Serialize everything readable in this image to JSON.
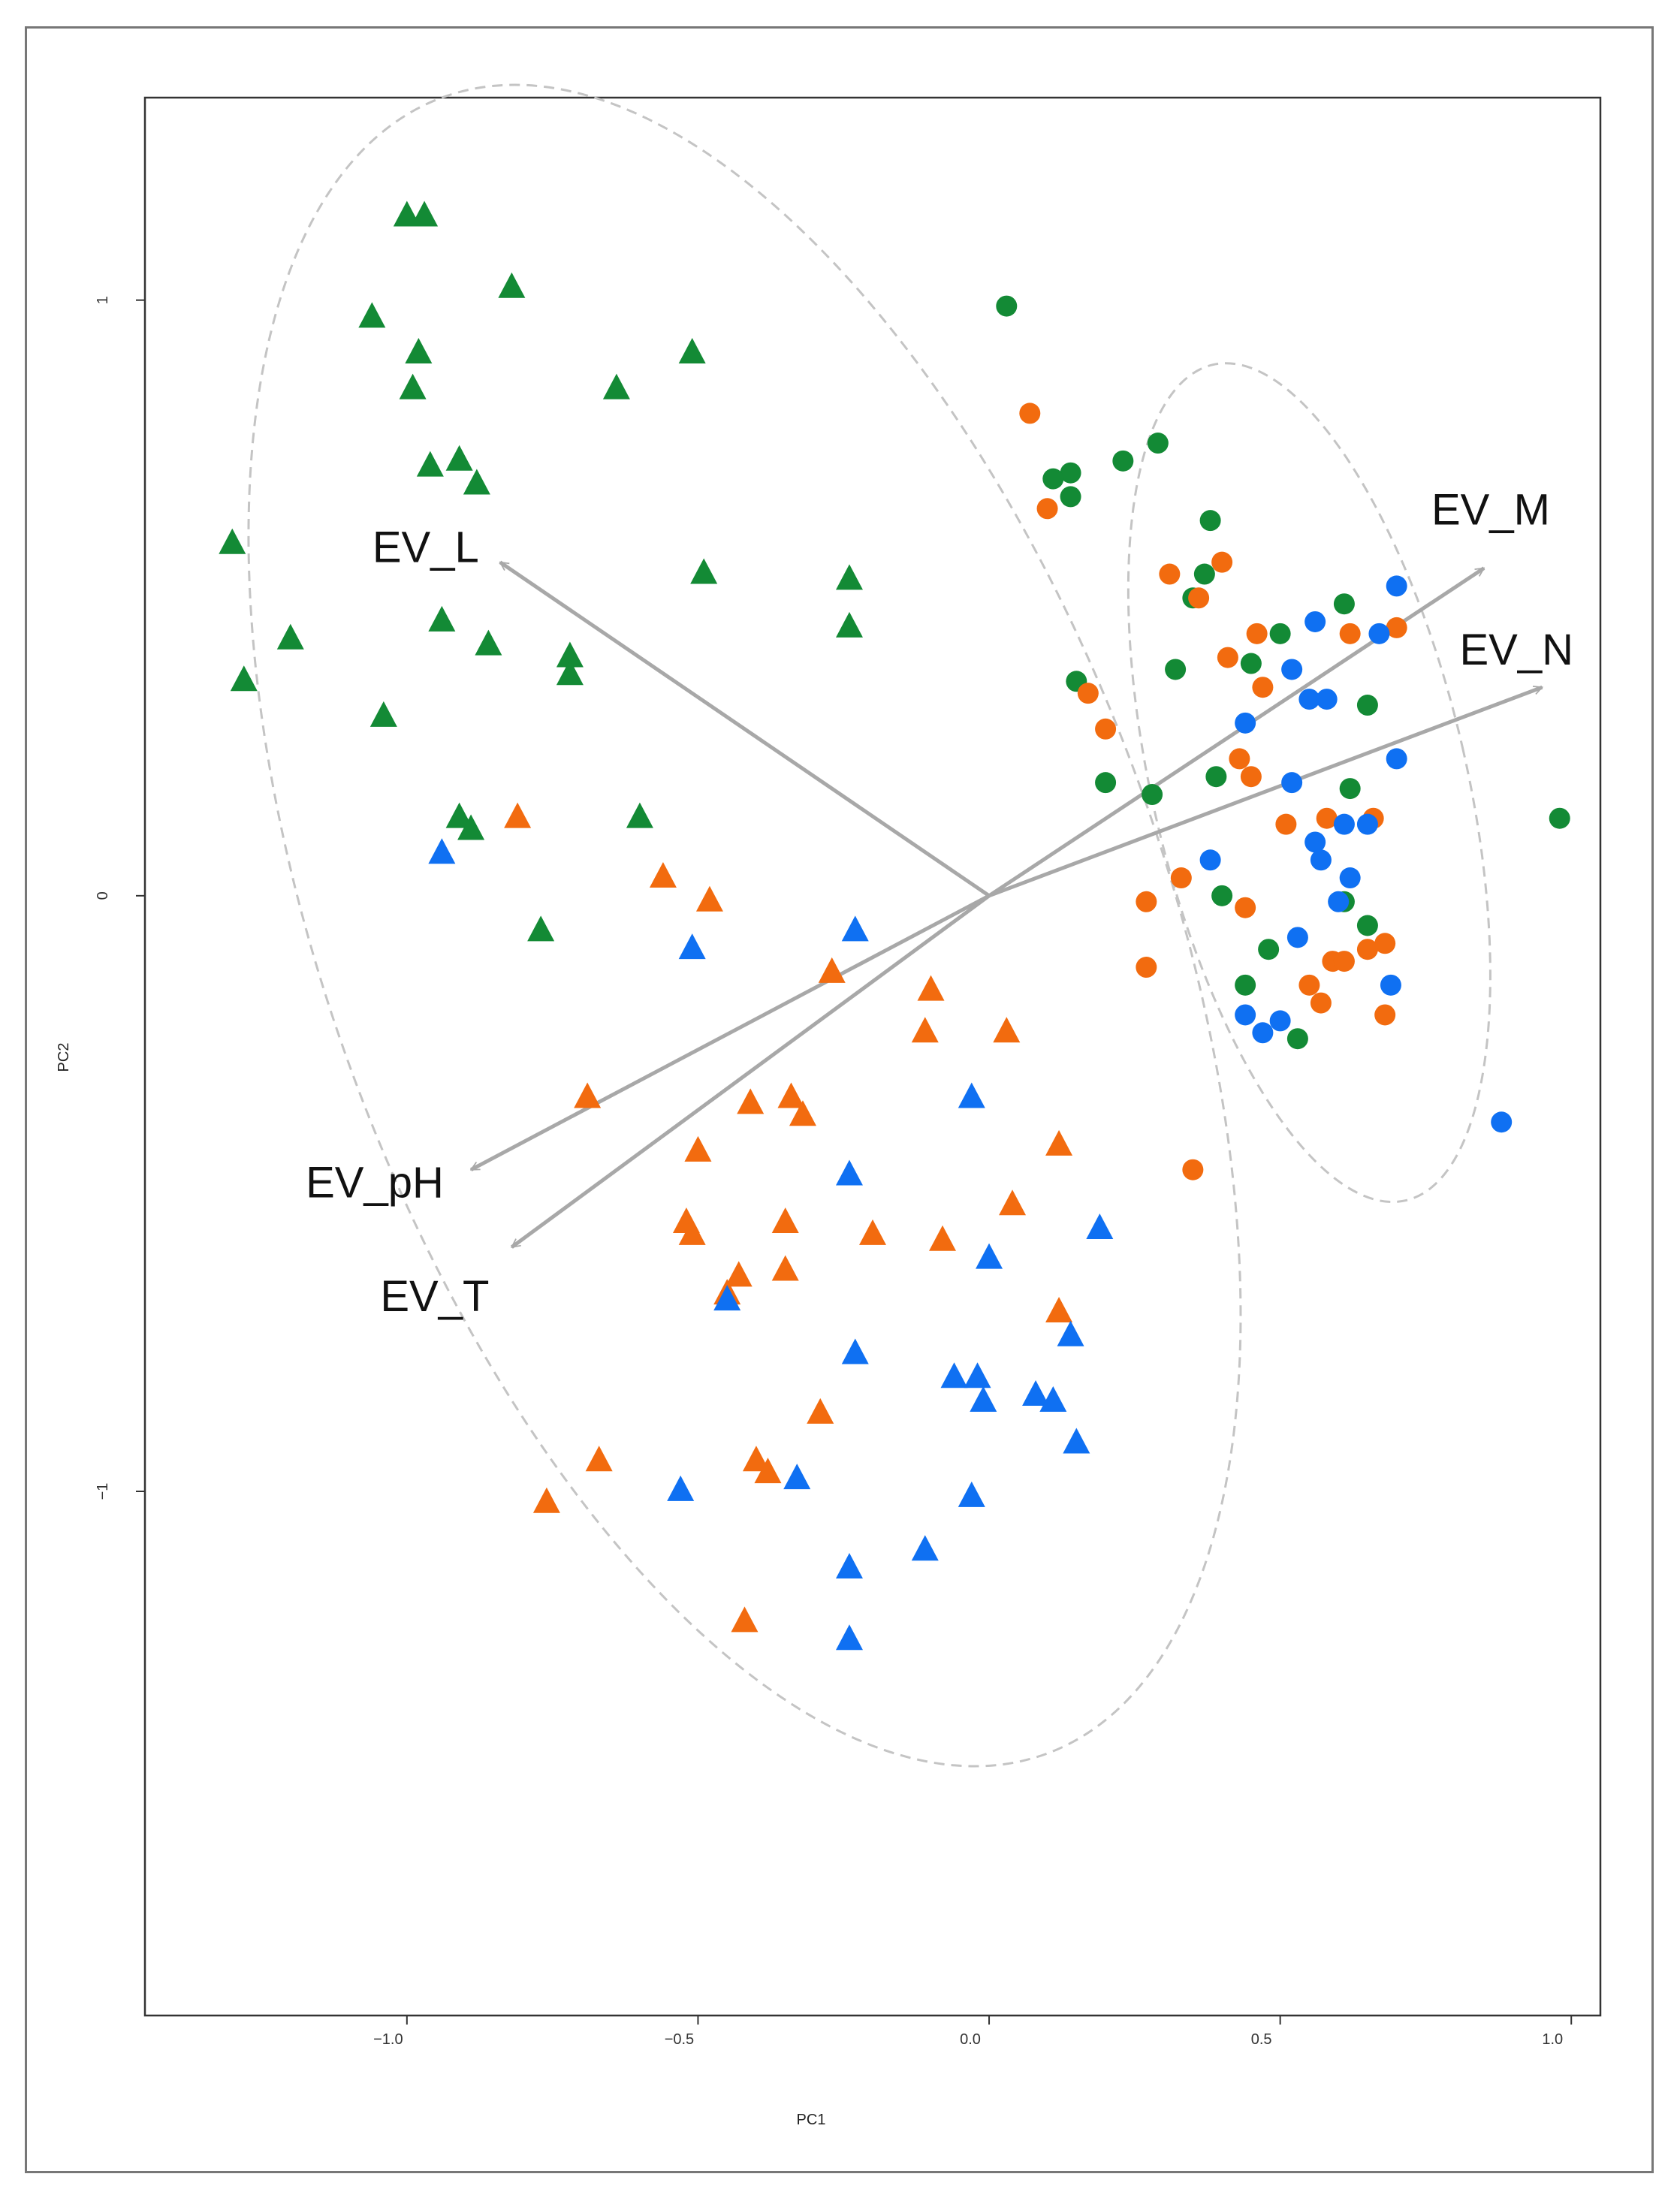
{
  "chart_data": {
    "type": "scatter",
    "subtype": "pca-biplot",
    "xlabel": "PC1",
    "ylabel": "PC2",
    "xlim": [
      -1.45,
      1.05
    ],
    "ylim": [
      -1.88,
      1.34
    ],
    "xticks": [
      -1.0,
      -0.5,
      0.0,
      0.5,
      1.0
    ],
    "xtick_labels": [
      "−1.0",
      "−0.5",
      "0.0",
      "0.5",
      "1.0"
    ],
    "yticks": [
      1,
      0,
      -1
    ],
    "ytick_labels": [
      "1",
      "0",
      "−1"
    ],
    "grid": false,
    "colors": {
      "green": "#138a35",
      "orange": "#f26b0f",
      "blue": "#0f70f2",
      "vector": "#a8a8a8",
      "ellipse": "#c4c4c4",
      "axis": "#333333"
    },
    "vectors": [
      {
        "label": "EV_L",
        "x": -0.84,
        "y": 0.56
      },
      {
        "label": "EV_M",
        "x": 0.85,
        "y": 0.55
      },
      {
        "label": "EV_N",
        "x": 0.95,
        "y": 0.35
      },
      {
        "label": "EV_pH",
        "x": -0.89,
        "y": -0.46
      },
      {
        "label": "EV_T",
        "x": -0.82,
        "y": -0.59
      }
    ],
    "ellipses": [
      {
        "name": "triangles-group",
        "center": [
          -0.42,
          -0.05
        ],
        "rx": 0.72,
        "ry": 1.48,
        "angle_deg": -20
      },
      {
        "name": "circles-group",
        "center": [
          0.55,
          0.19
        ],
        "rx": 0.27,
        "ry": 0.72,
        "angle_deg": -13
      }
    ],
    "series": [
      {
        "name": "green-circles",
        "shape": "circle",
        "color": "green",
        "points": [
          [
            0.03,
            0.99
          ],
          [
            0.29,
            0.76
          ],
          [
            0.23,
            0.73
          ],
          [
            0.14,
            0.71
          ],
          [
            0.11,
            0.7
          ],
          [
            0.14,
            0.67
          ],
          [
            0.38,
            0.63
          ],
          [
            0.37,
            0.54
          ],
          [
            0.35,
            0.5
          ],
          [
            0.61,
            0.49
          ],
          [
            0.5,
            0.44
          ],
          [
            0.45,
            0.39
          ],
          [
            0.15,
            0.36
          ],
          [
            0.32,
            0.38
          ],
          [
            0.65,
            0.32
          ],
          [
            0.98,
            0.13
          ],
          [
            0.62,
            0.18
          ],
          [
            0.2,
            0.19
          ],
          [
            0.28,
            0.17
          ],
          [
            0.39,
            0.2
          ],
          [
            0.4,
            0.0
          ],
          [
            0.61,
            -0.01
          ],
          [
            0.65,
            -0.05
          ],
          [
            0.48,
            -0.09
          ],
          [
            0.44,
            -0.15
          ],
          [
            0.53,
            -0.24
          ]
        ]
      },
      {
        "name": "orange-circles",
        "shape": "circle",
        "color": "orange",
        "points": [
          [
            0.07,
            0.81
          ],
          [
            0.1,
            0.65
          ],
          [
            0.31,
            0.54
          ],
          [
            0.36,
            0.5
          ],
          [
            0.4,
            0.56
          ],
          [
            0.46,
            0.44
          ],
          [
            0.62,
            0.44
          ],
          [
            0.7,
            0.45
          ],
          [
            0.41,
            0.4
          ],
          [
            0.47,
            0.35
          ],
          [
            0.17,
            0.34
          ],
          [
            0.2,
            0.28
          ],
          [
            0.43,
            0.23
          ],
          [
            0.45,
            0.2
          ],
          [
            0.51,
            0.12
          ],
          [
            0.58,
            0.13
          ],
          [
            0.66,
            0.13
          ],
          [
            0.33,
            0.03
          ],
          [
            0.27,
            -0.01
          ],
          [
            0.44,
            -0.02
          ],
          [
            0.59,
            -0.11
          ],
          [
            0.61,
            -0.11
          ],
          [
            0.65,
            -0.09
          ],
          [
            0.68,
            -0.08
          ],
          [
            0.55,
            -0.15
          ],
          [
            0.57,
            -0.18
          ],
          [
            0.68,
            -0.2
          ],
          [
            0.27,
            -0.12
          ],
          [
            0.35,
            -0.46
          ]
        ]
      },
      {
        "name": "blue-circles",
        "shape": "circle",
        "color": "blue",
        "points": [
          [
            0.7,
            0.52
          ],
          [
            0.56,
            0.46
          ],
          [
            0.67,
            0.44
          ],
          [
            0.52,
            0.38
          ],
          [
            0.55,
            0.33
          ],
          [
            0.58,
            0.33
          ],
          [
            0.44,
            0.29
          ],
          [
            0.7,
            0.23
          ],
          [
            0.52,
            0.19
          ],
          [
            0.56,
            0.09
          ],
          [
            0.61,
            0.12
          ],
          [
            0.65,
            0.12
          ],
          [
            0.57,
            0.06
          ],
          [
            0.38,
            0.06
          ],
          [
            0.62,
            0.03
          ],
          [
            0.6,
            -0.01
          ],
          [
            0.53,
            -0.07
          ],
          [
            0.69,
            -0.15
          ],
          [
            0.44,
            -0.2
          ],
          [
            0.47,
            -0.23
          ],
          [
            0.5,
            -0.21
          ],
          [
            0.88,
            -0.38
          ]
        ]
      },
      {
        "name": "green-triangles",
        "shape": "triangle",
        "color": "green",
        "points": [
          [
            -1.0,
            1.14
          ],
          [
            -0.97,
            1.14
          ],
          [
            -0.82,
            1.02
          ],
          [
            -1.06,
            0.97
          ],
          [
            -0.98,
            0.91
          ],
          [
            -0.51,
            0.91
          ],
          [
            -0.99,
            0.85
          ],
          [
            -0.64,
            0.85
          ],
          [
            -0.96,
            0.72
          ],
          [
            -0.91,
            0.73
          ],
          [
            -0.88,
            0.69
          ],
          [
            -1.3,
            0.59
          ],
          [
            -0.49,
            0.54
          ],
          [
            -0.24,
            0.53
          ],
          [
            -0.94,
            0.46
          ],
          [
            -0.24,
            0.45
          ],
          [
            -1.2,
            0.43
          ],
          [
            -0.86,
            0.42
          ],
          [
            -0.72,
            0.4
          ],
          [
            -0.72,
            0.37
          ],
          [
            -1.28,
            0.36
          ],
          [
            -1.04,
            0.3
          ],
          [
            -0.6,
            0.13
          ],
          [
            -0.91,
            0.13
          ],
          [
            -0.89,
            0.11
          ],
          [
            -0.77,
            -0.06
          ]
        ]
      },
      {
        "name": "orange-triangles",
        "shape": "triangle",
        "color": "orange",
        "points": [
          [
            -0.81,
            0.13
          ],
          [
            -0.56,
            0.03
          ],
          [
            -0.48,
            -0.01
          ],
          [
            -0.27,
            -0.13
          ],
          [
            -0.1,
            -0.16
          ],
          [
            -0.11,
            -0.23
          ],
          [
            0.03,
            -0.23
          ],
          [
            -0.69,
            -0.34
          ],
          [
            -0.41,
            -0.35
          ],
          [
            -0.34,
            -0.34
          ],
          [
            -0.32,
            -0.37
          ],
          [
            -0.5,
            -0.43
          ],
          [
            0.12,
            -0.42
          ],
          [
            -0.52,
            -0.55
          ],
          [
            -0.51,
            -0.57
          ],
          [
            -0.35,
            -0.55
          ],
          [
            -0.2,
            -0.57
          ],
          [
            -0.08,
            -0.58
          ],
          [
            0.04,
            -0.52
          ],
          [
            -0.43,
            -0.64
          ],
          [
            -0.45,
            -0.67
          ],
          [
            -0.35,
            -0.63
          ],
          [
            0.12,
            -0.7
          ],
          [
            -0.29,
            -0.87
          ],
          [
            -0.67,
            -0.95
          ],
          [
            -0.4,
            -0.95
          ],
          [
            -0.38,
            -0.97
          ],
          [
            -0.76,
            -1.02
          ],
          [
            -0.42,
            -1.22
          ]
        ]
      },
      {
        "name": "blue-triangles",
        "shape": "triangle",
        "color": "blue",
        "points": [
          [
            -0.94,
            0.07
          ],
          [
            -0.51,
            -0.09
          ],
          [
            -0.23,
            -0.06
          ],
          [
            -0.03,
            -0.34
          ],
          [
            -0.24,
            -0.47
          ],
          [
            0.19,
            -0.56
          ],
          [
            0.0,
            -0.61
          ],
          [
            -0.45,
            -0.68
          ],
          [
            -0.23,
            -0.77
          ],
          [
            0.14,
            -0.74
          ],
          [
            -0.06,
            -0.81
          ],
          [
            -0.02,
            -0.81
          ],
          [
            0.08,
            -0.84
          ],
          [
            0.11,
            -0.85
          ],
          [
            -0.01,
            -0.85
          ],
          [
            0.15,
            -0.92
          ],
          [
            -0.33,
            -0.98
          ],
          [
            -0.53,
            -1.0
          ],
          [
            -0.03,
            -1.01
          ],
          [
            -0.11,
            -1.1
          ],
          [
            -0.24,
            -1.13
          ],
          [
            -0.24,
            -1.25
          ]
        ]
      }
    ]
  }
}
